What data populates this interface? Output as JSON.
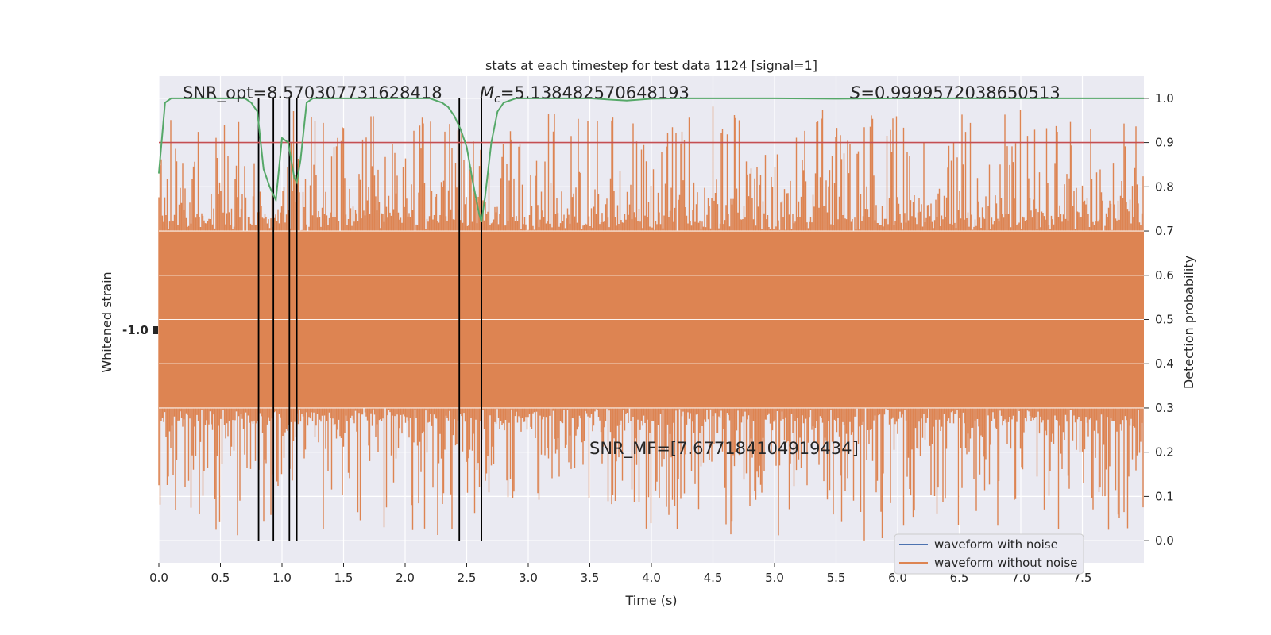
{
  "chart_data": {
    "type": "line",
    "title": "stats at each timestep for test data 1124 [signal=1]",
    "xlabel": "Time (s)",
    "ylabel_left": "Whitened strain",
    "ylabel_right": "Detection probability",
    "xlim": [
      0.0,
      8.0
    ],
    "ylim_right": [
      -0.05,
      1.05
    ],
    "x_ticks": [
      "0.0",
      "0.5",
      "1.0",
      "1.5",
      "2.0",
      "2.5",
      "3.0",
      "3.5",
      "4.0",
      "4.5",
      "5.0",
      "5.5",
      "6.0",
      "6.5",
      "7.0",
      "7.5"
    ],
    "y_ticks_right": [
      "0.0",
      "0.1",
      "0.2",
      "0.3",
      "0.4",
      "0.5",
      "0.6",
      "0.7",
      "0.8",
      "0.9",
      "1.0"
    ],
    "grid": true,
    "annotations": {
      "snr_opt": "SNR_opt=8.570307731628418",
      "mc_prefix": "M",
      "mc_sub": "c",
      "mc_value": "=5.138482570648193",
      "s_prefix": "S",
      "s_value": "=0.9999572038650513",
      "snr_mf": "SNR_MF=[7.677184104919434]"
    },
    "threshold": {
      "value": 0.9,
      "color": "#c44e52"
    },
    "trigger_times": [
      0.81,
      0.93,
      1.06,
      1.12,
      2.44,
      2.62
    ],
    "series": [
      {
        "name": "waveform with noise",
        "color": "#4c72b0",
        "values": []
      },
      {
        "name": "waveform without noise",
        "color": "#dd8452",
        "band_center": 0.5,
        "band_half_width": 0.2,
        "spike_extent_high": 1.0,
        "spike_extent_low": 0.0
      },
      {
        "name": "detection probability",
        "color": "#55a868",
        "x": [
          0.0,
          0.05,
          0.1,
          0.2,
          0.3,
          0.4,
          0.5,
          0.6,
          0.7,
          0.75,
          0.8,
          0.85,
          0.9,
          0.95,
          1.0,
          1.05,
          1.1,
          1.12,
          1.15,
          1.2,
          1.25,
          1.3,
          1.5,
          1.75,
          2.0,
          2.2,
          2.3,
          2.35,
          2.4,
          2.45,
          2.5,
          2.55,
          2.6,
          2.62,
          2.65,
          2.7,
          2.75,
          2.8,
          2.9,
          3.0,
          3.5,
          3.8,
          4.0,
          4.2,
          5.0,
          5.5,
          6.0,
          6.5,
          7.0,
          7.5,
          8.0
        ],
        "values": [
          0.83,
          0.99,
          1.0,
          1.0,
          1.0,
          1.0,
          1.0,
          1.0,
          1.0,
          0.99,
          0.97,
          0.84,
          0.8,
          0.77,
          0.91,
          0.9,
          0.82,
          0.81,
          0.86,
          0.99,
          1.0,
          1.0,
          1.0,
          1.0,
          1.0,
          1.0,
          0.99,
          0.98,
          0.96,
          0.93,
          0.89,
          0.81,
          0.74,
          0.72,
          0.78,
          0.9,
          0.97,
          0.99,
          1.0,
          1.0,
          1.0,
          0.995,
          0.999,
          1.0,
          1.0,
          0.999,
          1.0,
          1.0,
          1.0,
          1.0,
          1.0
        ]
      }
    ],
    "legend_position": "lower-right",
    "left_axis_tick_glyph": "-1.0"
  }
}
